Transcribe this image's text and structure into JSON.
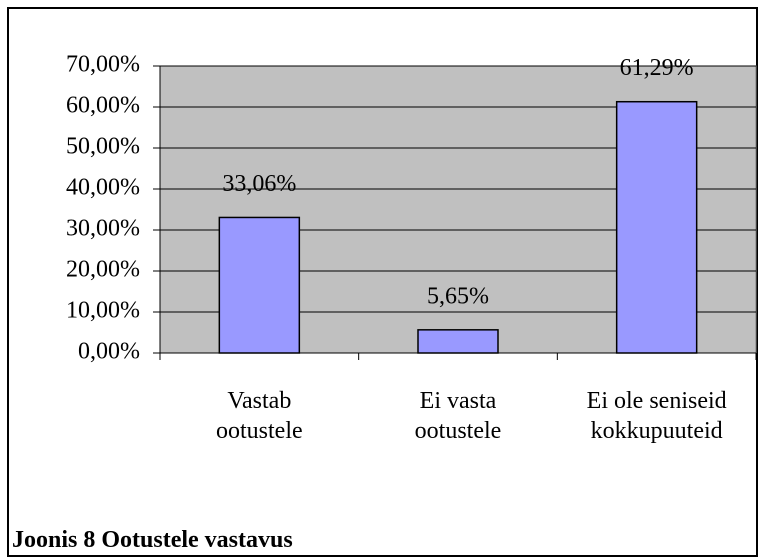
{
  "chart_data": {
    "type": "bar",
    "caption": "Joonis 8 Ootustele vastavus",
    "categories": [
      "Vastab\nootustele",
      "Ei vasta\nootustele",
      "Ei ole seniseid\nkokkupuuteid"
    ],
    "values": [
      33.06,
      5.65,
      61.29
    ],
    "value_labels": [
      "33,06%",
      "5,65%",
      "61,29%"
    ],
    "color": "#9999ff",
    "plot_background": "#c0c0c0",
    "ylim": [
      0,
      70
    ],
    "yticks": [
      {
        "value": 0,
        "label": "0,00%"
      },
      {
        "value": 10,
        "label": "10,00%"
      },
      {
        "value": 20,
        "label": "20,00%"
      },
      {
        "value": 30,
        "label": "30,00%"
      },
      {
        "value": 40,
        "label": "40,00%"
      },
      {
        "value": 50,
        "label": "50,00%"
      },
      {
        "value": 60,
        "label": "60,00%"
      },
      {
        "value": 70,
        "label": "70,00%"
      }
    ],
    "grid": true
  }
}
